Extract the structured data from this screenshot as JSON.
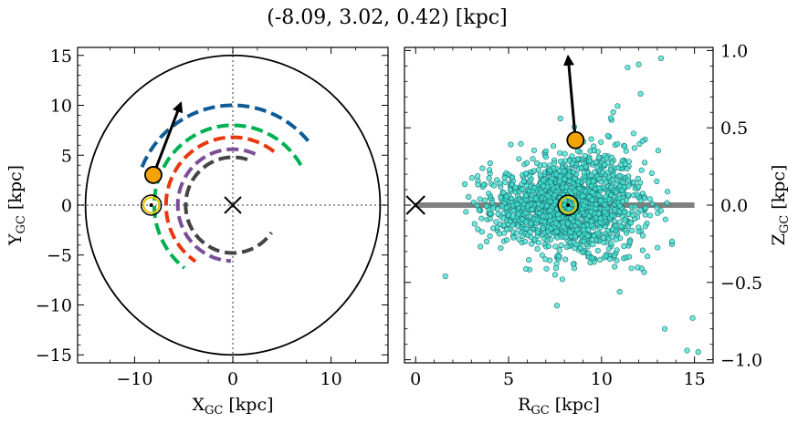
{
  "figure": {
    "title": "(-8.09, 3.02, 0.42) [kpc]"
  },
  "chart_data": [
    {
      "type": "line",
      "panel": "left",
      "xlabel_main": "X",
      "xlabel_sub": "GC",
      "xlabel_unit": " [kpc]",
      "ylabel_main": "Y",
      "ylabel_sub": "GC",
      "ylabel_unit": " [kpc]",
      "xlim": [
        -15.8,
        15.8
      ],
      "ylim": [
        -15.8,
        15.8
      ],
      "xticks": [
        -10,
        0,
        10
      ],
      "xtick_labels": [
        "−10",
        "0",
        "10"
      ],
      "yticks": [
        -15,
        -10,
        -5,
        0,
        5,
        10,
        15
      ],
      "ytick_labels": [
        "−15",
        "−10",
        "−5",
        "0",
        "5",
        "10",
        "15"
      ],
      "boundary_circle": {
        "cx": 0,
        "cy": 0,
        "r": 15,
        "color": "#000000"
      },
      "galactic_center": {
        "x": 0,
        "y": 0,
        "marker": "x"
      },
      "sun": {
        "x": -8.3,
        "y": 0,
        "marker": "sun-symbol"
      },
      "star": {
        "x": -8.09,
        "y": 3.02,
        "color": "#f5a300"
      },
      "velocity_arrow": {
        "from": [
          -8.09,
          3.02
        ],
        "to": [
          -5.3,
          10.2
        ],
        "color": "#000000"
      },
      "orbit_arcs": [
        {
          "color": "#0f5b96",
          "r": 10.0,
          "start_deg": 40,
          "end_deg": 160
        },
        {
          "color": "#00b050",
          "r": 8.0,
          "start_deg": 30,
          "end_deg": 232
        },
        {
          "color": "#e8380d",
          "r": 6.8,
          "start_deg": 52,
          "end_deg": 236
        },
        {
          "color": "#7a4f97",
          "r": 5.6,
          "start_deg": 66,
          "end_deg": 268
        },
        {
          "color": "#444444",
          "r": 4.8,
          "start_deg": 72,
          "end_deg": 325
        }
      ],
      "grid": false
    },
    {
      "type": "scatter",
      "panel": "right",
      "xlabel_main": "R",
      "xlabel_sub": "GC",
      "xlabel_unit": " [kpc]",
      "ylabel_main": "Z",
      "ylabel_sub": "GC",
      "ylabel_unit": " [kpc]",
      "xlim": [
        -0.6,
        16
      ],
      "ylim": [
        -1.02,
        1.02
      ],
      "xticks": [
        0,
        5,
        10,
        15
      ],
      "xtick_labels": [
        "0",
        "5",
        "10",
        "15"
      ],
      "yticks": [
        -1.0,
        -0.5,
        0.0,
        0.5,
        1.0
      ],
      "ytick_labels": [
        "−1.0",
        "−0.5",
        "0.0",
        "0.5",
        "1.0"
      ],
      "disk_line": {
        "x_start": 0,
        "x_end": 15,
        "y": 0,
        "color": "#808080"
      },
      "galactic_center": {
        "x": 0,
        "y": 0,
        "marker": "x"
      },
      "sun": {
        "x": 8.2,
        "y": 0,
        "marker": "sun-symbol"
      },
      "star": {
        "x": 8.6,
        "y": 0.42,
        "color": "#f5a300"
      },
      "velocity_arrow": {
        "from": [
          8.6,
          0.42
        ],
        "to": [
          8.2,
          0.96
        ],
        "color": "#000000"
      },
      "points_color": "#40e0d0",
      "points_edge": "#1f6f6f",
      "points_summary": {
        "count_approx": 1600,
        "r_center": 8.2,
        "z_center": 0.0,
        "z_spread": 0.2
      },
      "outliers": [
        [
          13.2,
          0.95
        ],
        [
          15.2,
          -0.95
        ],
        [
          11.4,
          0.89
        ],
        [
          14.6,
          -0.94
        ],
        [
          1.6,
          -0.46
        ],
        [
          12.0,
          0.91
        ],
        [
          14.9,
          -0.73
        ],
        [
          7.6,
          -0.65
        ],
        [
          13.4,
          -0.8
        ],
        [
          12.1,
          0.72
        ]
      ],
      "grid": false
    }
  ]
}
